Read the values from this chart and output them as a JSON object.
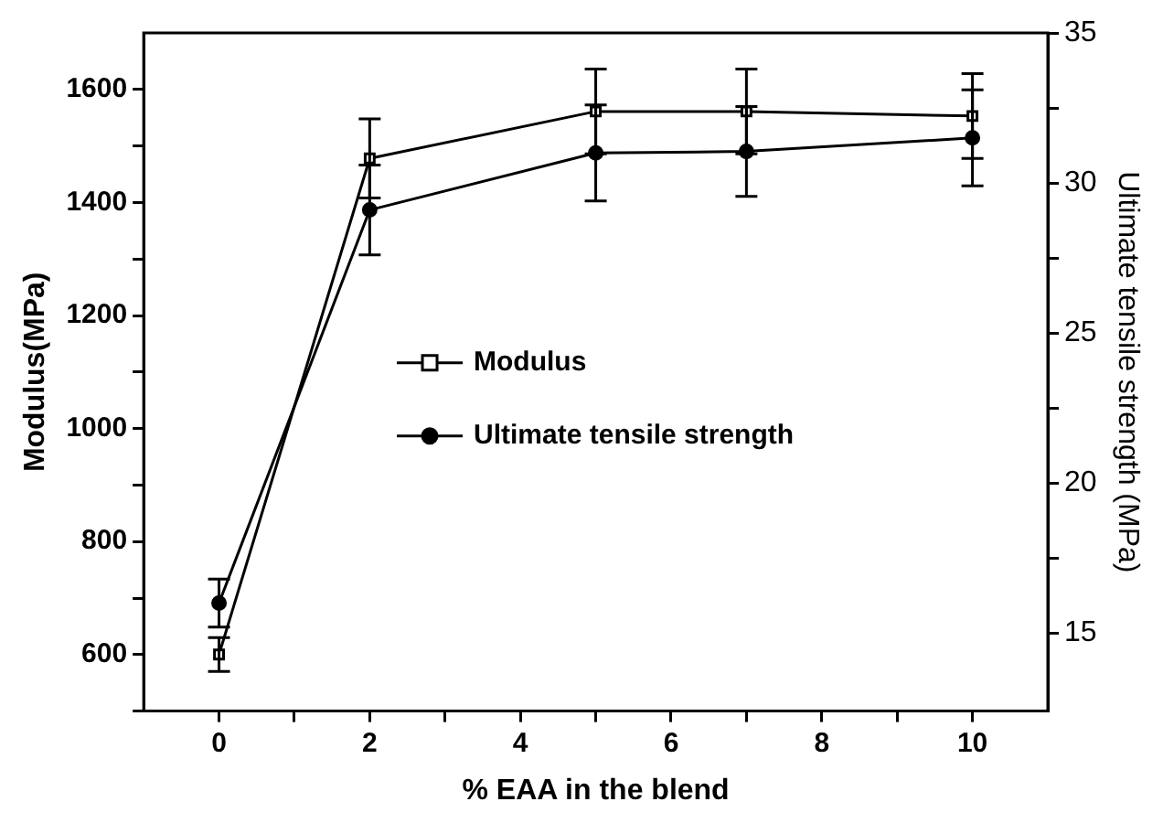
{
  "chart_data": {
    "type": "line",
    "xlabel": "% EAA in the blend",
    "ylabel": "Modulus(MPa)",
    "y2label": "Ultimate tensile strength (MPa)",
    "x": [
      0,
      2,
      5,
      7,
      10
    ],
    "xlim": [
      -1,
      11
    ],
    "xticks": [
      0,
      {
        "value": 1,
        "label": null
      },
      2,
      {
        "value": 3,
        "label": null
      },
      4,
      {
        "value": 5,
        "label": null
      },
      6,
      {
        "value": 7,
        "label": null
      },
      8,
      {
        "value": 9,
        "label": null
      },
      10
    ],
    "ylim": [
      500,
      1700
    ],
    "yticks": [
      {
        "value": 500,
        "label": null
      },
      600,
      {
        "value": 700,
        "label": null
      },
      800,
      {
        "value": 900,
        "label": null
      },
      1000,
      {
        "value": 1100,
        "label": null
      },
      1200,
      {
        "value": 1300,
        "label": null
      },
      1400,
      {
        "value": 1500,
        "label": null
      },
      1600
    ],
    "y2lim": [
      12.4,
      35
    ],
    "y2ticks": [
      15,
      {
        "value": 17.5,
        "label": null
      },
      20,
      {
        "value": 22.5,
        "label": null
      },
      25,
      {
        "value": 27.5,
        "label": null
      },
      30,
      {
        "value": 32.5,
        "label": null
      },
      35
    ],
    "series": [
      {
        "name": "Modulus",
        "color": "#000000",
        "marker": "square",
        "values": [
          600,
          1478,
          1561,
          1561,
          1553
        ],
        "errors": [
          30,
          70,
          75,
          75,
          75
        ]
      },
      {
        "name": "Ultimate tensile strength",
        "color": "#000000",
        "marker": "circle",
        "axis": "y2",
        "values": [
          16.0,
          29.1,
          31.0,
          31.05,
          31.5
        ],
        "errors": [
          0.8,
          1.5,
          1.6,
          1.5,
          1.6
        ]
      }
    ],
    "grid": false,
    "legend": "center",
    "line_style": "solid"
  }
}
